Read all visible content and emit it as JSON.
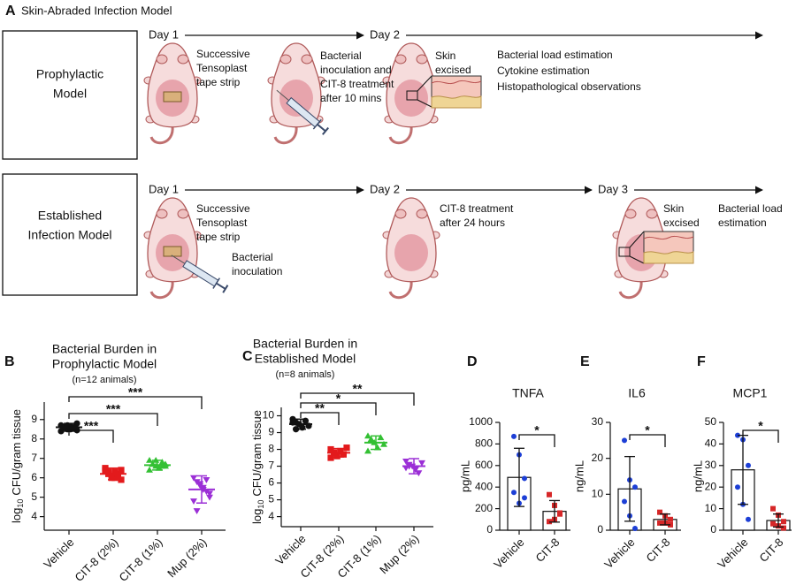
{
  "diagram": {
    "panel": "A",
    "title": "Skin-Abraded Infection Model",
    "rows": [
      {
        "model": [
          "Prophylactic",
          "Model"
        ],
        "days": [
          "Day 1",
          "Day 2"
        ],
        "steps": [
          [
            "Successive",
            "Tensoplast",
            "tape strip"
          ],
          [
            "Bacterial",
            "inoculation and",
            "CIT-8 treatment",
            "after 10 mins"
          ],
          [
            "Skin",
            "excised"
          ],
          [
            "Bacterial load estimation",
            "Cytokine estimation",
            "Histopathological observations"
          ]
        ]
      },
      {
        "model": [
          "Established",
          "Infection Model"
        ],
        "days": [
          "Day 1",
          "Day 2",
          "Day 3"
        ],
        "steps": [
          [
            "Successive",
            "Tensoplast",
            "tape strip"
          ],
          [
            "Bacterial",
            "inoculation"
          ],
          [
            "CIT-8 treatment",
            "after 24 hours"
          ],
          [
            "Skin",
            "excised"
          ],
          [
            "Bacterial load",
            "estimation"
          ]
        ]
      }
    ]
  },
  "chart_data": [
    {
      "type": "dotplot",
      "panel": "B",
      "title": [
        "Bacterial Burden in",
        "Prophylactic Model"
      ],
      "subtitle": "(n=12 animals)",
      "ylabel": {
        "base": "log",
        "sub": "10",
        "rest": "CFU/gram tissue"
      },
      "categories": [
        "Vehicle",
        "CIT-8 (2%)",
        "CIT-8 (1%)",
        "Mup (2%)"
      ],
      "colors": [
        "#111111",
        "#e31a1c",
        "#33c033",
        "#9b2fd6"
      ],
      "markers": [
        "circle",
        "square",
        "triangle",
        "triangle-down"
      ],
      "values": [
        8.6,
        6.2,
        6.65,
        5.4
      ],
      "errors": [
        0.2,
        0.3,
        0.25,
        0.7
      ],
      "points": [
        [
          8.7,
          8.6,
          8.5,
          8.65,
          8.55,
          8.8,
          8.4,
          8.6,
          8.7,
          8.5,
          8.6,
          8.45
        ],
        [
          6.5,
          6.3,
          6.1,
          6.0,
          6.2,
          5.9,
          6.4,
          6.2,
          6.0,
          6.3,
          6.1,
          6.4
        ],
        [
          6.9,
          6.7,
          6.6,
          6.5,
          6.8,
          6.6,
          6.4,
          6.7,
          6.9,
          6.5,
          6.6,
          6.7
        ],
        [
          6.0,
          5.8,
          5.6,
          5.4,
          5.3,
          5.0,
          4.8,
          4.3,
          5.7,
          5.5,
          5.9,
          5.2
        ]
      ],
      "ylim": [
        3.3,
        9.9
      ],
      "yticks": [
        4,
        5,
        6,
        7,
        8,
        9
      ],
      "significance": [
        "***",
        "***",
        "***"
      ]
    },
    {
      "type": "dotplot",
      "panel": "C",
      "title": [
        "Bacterial Burden in",
        "Established Model"
      ],
      "subtitle": "(n=8 animals)",
      "ylabel": {
        "base": "log",
        "sub": "10",
        "rest": "CFU/gram tissue"
      },
      "categories": [
        "Vehicle",
        "CIT-8 (2%)",
        "CIT-8 (1%)",
        "Mup (2%)"
      ],
      "colors": [
        "#111111",
        "#e31a1c",
        "#33c033",
        "#9b2fd6"
      ],
      "markers": [
        "circle",
        "square",
        "triangle",
        "triangle-down"
      ],
      "values": [
        9.5,
        7.8,
        8.4,
        7.0
      ],
      "errors": [
        0.3,
        0.25,
        0.4,
        0.45
      ],
      "points": [
        [
          9.8,
          9.6,
          9.5,
          9.3,
          9.7,
          9.4,
          9.6,
          9.2
        ],
        [
          8.0,
          7.8,
          7.6,
          7.9,
          7.7,
          8.1,
          7.5,
          7.8
        ],
        [
          8.8,
          8.6,
          8.4,
          8.1,
          8.7,
          8.3,
          7.9,
          8.5
        ],
        [
          7.3,
          7.1,
          7.0,
          6.8,
          6.6,
          7.2,
          6.9,
          7.0
        ]
      ],
      "ylim": [
        3.4,
        10.5
      ],
      "yticks": [
        4,
        5,
        6,
        7,
        8,
        9,
        10
      ],
      "significance": [
        "**",
        "*",
        "**"
      ]
    },
    {
      "type": "bar",
      "panel": "D",
      "title": "TNFA",
      "ylabel": "pg/mL",
      "categories": [
        "Vehicle",
        "CIT-8"
      ],
      "colors": [
        "#1d3fd6",
        "#d62728"
      ],
      "markers": [
        "circle",
        "square"
      ],
      "values": [
        490,
        175
      ],
      "errors": [
        270,
        100
      ],
      "points": [
        [
          870,
          700,
          480,
          350,
          250,
          300
        ],
        [
          330,
          230,
          150,
          80,
          100,
          160
        ]
      ],
      "ylim": [
        0,
        1000
      ],
      "yticks": [
        0,
        200,
        400,
        600,
        800,
        1000
      ],
      "significance": [
        "*"
      ]
    },
    {
      "type": "bar",
      "panel": "E",
      "title": "IL6",
      "ylabel": "ng/mL",
      "categories": [
        "Vehicle",
        "CIT-8"
      ],
      "colors": [
        "#1d3fd6",
        "#d62728"
      ],
      "markers": [
        "circle",
        "square"
      ],
      "values": [
        11.5,
        3
      ],
      "errors": [
        9,
        1.5
      ],
      "points": [
        [
          25,
          14,
          12,
          8,
          4,
          0.5
        ],
        [
          5,
          4,
          3,
          2,
          2,
          1.5
        ]
      ],
      "ylim": [
        0,
        30
      ],
      "yticks": [
        0,
        10,
        20,
        30
      ],
      "significance": [
        "*"
      ]
    },
    {
      "type": "bar",
      "panel": "F",
      "title": "MCP1",
      "ylabel": "ng/mL",
      "categories": [
        "Vehicle",
        "CIT-8"
      ],
      "colors": [
        "#1d3fd6",
        "#d62728"
      ],
      "markers": [
        "circle",
        "square"
      ],
      "values": [
        28,
        4.5
      ],
      "errors": [
        16,
        3
      ],
      "points": [
        [
          44,
          42,
          30,
          20,
          12,
          5
        ],
        [
          10,
          7,
          4,
          3,
          2,
          1
        ]
      ],
      "ylim": [
        0,
        50
      ],
      "yticks": [
        0,
        10,
        20,
        30,
        40,
        50
      ],
      "significance": [
        "*"
      ]
    }
  ]
}
